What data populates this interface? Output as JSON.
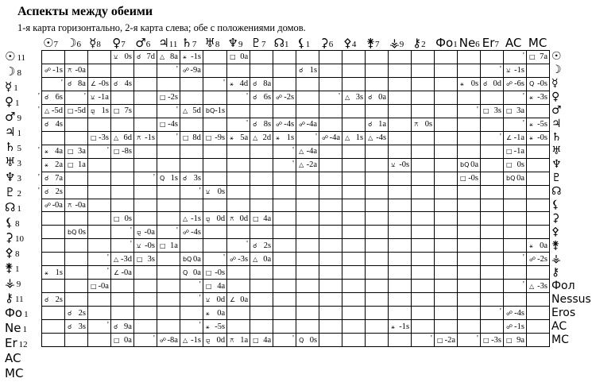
{
  "title": "Аспекты между обеими",
  "subtitle": "1-я карта горизонтально, 2-я карта слева; обе с положениями домов.",
  "columns": [
    {
      "sym": "☉",
      "house": "7"
    },
    {
      "sym": "☽",
      "house": "6"
    },
    {
      "sym": "☿",
      "house": "8"
    },
    {
      "sym": "♀",
      "house": "7"
    },
    {
      "sym": "♂",
      "house": "6"
    },
    {
      "sym": "♃",
      "house": "11"
    },
    {
      "sym": "♄",
      "house": "7"
    },
    {
      "sym": "♅",
      "house": "8"
    },
    {
      "sym": "♆",
      "house": "9"
    },
    {
      "sym": "♇",
      "house": "7"
    },
    {
      "sym": "☊",
      "house": "1"
    },
    {
      "sym": "⚸",
      "house": "1"
    },
    {
      "sym": "⚳",
      "house": "6"
    },
    {
      "sym": "⚴",
      "house": "4"
    },
    {
      "sym": "⚵",
      "house": "7"
    },
    {
      "sym": "⚶",
      "house": "9"
    },
    {
      "sym": "⚷",
      "house": "2"
    },
    {
      "sym": "Фо",
      "house": "1"
    },
    {
      "sym": "Ne",
      "house": "6"
    },
    {
      "sym": "Er",
      "house": "7"
    },
    {
      "sym": "AC",
      "house": ""
    },
    {
      "sym": "MC",
      "house": ""
    }
  ],
  "rows": [
    {
      "sym": "☉",
      "house": "11",
      "right": "☉",
      "cells": [
        "",
        "",
        "",
        "⚺ 0s",
        "☌ 7d",
        "△ 8a",
        "⚹ -1s",
        "",
        "□ 0a",
        "",
        "",
        "",
        "",
        "",
        "",
        "",
        "",
        "",
        "",
        "",
        "",
        "'□ 7a"
      ]
    },
    {
      "sym": "☽",
      "house": "8",
      "right": "☽",
      "cells": [
        "☍ -1s",
        "⚻ -0a",
        "",
        "",
        "",
        "",
        "'☍ -9a",
        "",
        "",
        "",
        "",
        "☌ 1s",
        "",
        "",
        "",
        "",
        "",
        "",
        "",
        "",
        "'⚺ -1s",
        ""
      ]
    },
    {
      "sym": "☿",
      "house": "1",
      "right": "☿",
      "cells": [
        "",
        "'☌ 8a",
        "∠ -0s",
        "☌ 4s",
        "",
        "",
        "",
        "",
        "'⚹ 4d",
        "☌ 8a",
        "",
        "",
        "",
        "",
        "",
        "",
        "",
        "",
        "⚹ 0s",
        "☌ 0d",
        "☍ -6s",
        "Q -0s"
      ]
    },
    {
      "sym": "♀",
      "house": "1",
      "right": "♀",
      "cells": [
        "'☌ 6s",
        "",
        "'⚺ -1a",
        "",
        "",
        "□ -2s",
        "",
        "",
        "",
        "'☌ 6s",
        "☍ -2s",
        "",
        "",
        "'△ 3s",
        "☌ 0a",
        "",
        "",
        "",
        "",
        "",
        "",
        "'⚹ -3s"
      ]
    },
    {
      "sym": "♂",
      "house": "9",
      "right": "♂",
      "cells": [
        "'△ -5d",
        "□ -5d",
        "⚼ 1s",
        "□ 7s",
        "",
        "",
        "'△ 5d",
        "bQ -1s",
        "",
        "",
        "",
        "",
        "",
        "",
        "",
        "",
        "",
        "",
        "",
        "'□ 3s",
        "□ 3a",
        ""
      ]
    },
    {
      "sym": "♃",
      "house": "1",
      "right": "♃",
      "cells": [
        "☌ 4s",
        "",
        "",
        "",
        "",
        "□ -4s",
        "",
        "",
        "",
        "'☌ 8s",
        "☍ -4s",
        "☍ -4a",
        "",
        "",
        "☌ 1a",
        "",
        "⚻ 0s",
        "",
        "",
        "",
        "",
        "'⚹ -5s"
      ]
    },
    {
      "sym": "♄",
      "house": "5",
      "right": "♄",
      "cells": [
        "",
        "",
        "□ -3s",
        "△ 6d",
        "⚻ -1s",
        "",
        "'□ 8d",
        "□ -9s",
        "⚹ 5a",
        "△ 2d",
        "⚹ 1s",
        "",
        "'☍ -4a",
        "△ 1s",
        "△ -4s",
        "",
        "",
        "",
        "",
        "",
        "'∠ -1a",
        "⚹ -0s"
      ]
    },
    {
      "sym": "♅",
      "house": "3",
      "right": "♅",
      "cells": [
        "'⚹ 4a",
        "□ 3a",
        "",
        "'□ -8s",
        "",
        "",
        "",
        "",
        "",
        "",
        "",
        "'△ -4a",
        "",
        "",
        "",
        "",
        "",
        "",
        "",
        "",
        "□ -1a",
        ""
      ]
    },
    {
      "sym": "♆",
      "house": "3",
      "right": "♆",
      "cells": [
        "⚹ 2a",
        "□ 1a",
        "",
        "",
        "",
        "",
        "",
        "",
        "",
        "",
        "",
        "'△ -2a",
        "",
        "",
        "",
        "⚺ -0s",
        "",
        "",
        "bQ 0a",
        "",
        "□ 0s",
        ""
      ]
    },
    {
      "sym": "♇",
      "house": "2",
      "right": "♇",
      "cells": [
        "'☌ 7a",
        "",
        "",
        "",
        "",
        "'Q 1s",
        "☌ 3s",
        "",
        "",
        "",
        "",
        "",
        "",
        "",
        "",
        "",
        "",
        "",
        "□ -0s",
        "",
        "bQ 0a",
        ""
      ]
    },
    {
      "sym": "☊",
      "house": "1",
      "right": "☊",
      "cells": [
        "'☌ 2s",
        "",
        "",
        "",
        "",
        "",
        "",
        "'⚺ 0s",
        "",
        "",
        "",
        "",
        "",
        "",
        "",
        "",
        "",
        "",
        "",
        "",
        "",
        ""
      ]
    },
    {
      "sym": "⚸",
      "house": "8",
      "right": "⚸",
      "cells": [
        "☍ -0a",
        "⚻ -0a",
        "",
        "",
        "",
        "",
        "",
        "",
        "",
        "",
        "",
        "",
        "",
        "",
        "",
        "",
        "",
        "",
        "",
        "",
        "",
        ""
      ]
    },
    {
      "sym": "⚳",
      "house": "10",
      "right": "⚳",
      "cells": [
        "",
        "",
        "",
        "□ 0s",
        "",
        "",
        "△ -1s",
        "⚼ 0d",
        "⚻ 0d",
        "□ 4a",
        "",
        "",
        "",
        "",
        "",
        "",
        "",
        "",
        "",
        "",
        "",
        ""
      ]
    },
    {
      "sym": "⚴",
      "house": "8",
      "right": "⚴",
      "cells": [
        "",
        "bQ 0s",
        "",
        "",
        "'⚼ -0a",
        "",
        "'☍ -4s",
        "",
        "",
        "",
        "",
        "",
        "",
        "",
        "",
        "",
        "",
        "",
        "",
        "",
        "",
        ""
      ]
    },
    {
      "sym": "⚵",
      "house": "1",
      "right": "⚵",
      "cells": [
        "",
        "",
        "",
        "",
        "'⚺ -0s",
        "□ 1a",
        "",
        "",
        "",
        "'☌ 2s",
        "",
        "",
        "",
        "",
        "",
        "",
        "",
        "",
        "",
        "",
        "",
        "⚹ 0a"
      ]
    },
    {
      "sym": "⚶",
      "house": "9",
      "right": "⚶",
      "cells": [
        "",
        "",
        "",
        "'△ -3d",
        "□ 3s",
        "",
        "bQ 0a",
        "",
        "'☍ -3s",
        "△ 0a",
        "",
        "",
        "",
        "",
        "",
        "",
        "",
        "",
        "",
        "",
        "",
        "'☍ -2s"
      ]
    },
    {
      "sym": "⚷",
      "house": "11",
      "right": "⚷",
      "cells": [
        "⚹ 1s",
        "",
        "",
        "'∠ -0a",
        "",
        "",
        "Q 0a",
        "□ -0s",
        "",
        "",
        "",
        "",
        "",
        "",
        "",
        "",
        "",
        "",
        "",
        "",
        "",
        ""
      ]
    },
    {
      "sym": "Фо",
      "house": "1",
      "right": "Фол",
      "cells": [
        "",
        "",
        "□ -0a",
        "",
        "",
        "",
        "",
        "'□ 4a",
        "",
        "",
        "",
        "",
        "",
        "",
        "",
        "",
        "",
        "",
        "",
        "",
        "",
        "'△ -3s"
      ]
    },
    {
      "sym": "Ne",
      "house": "1",
      "right": "Nessus",
      "cells": [
        "☌ 2s",
        "",
        "",
        "",
        "",
        "",
        "",
        "'⚺ 0d",
        "∠ 0a",
        "",
        "",
        "",
        "",
        "",
        "",
        "",
        "",
        "",
        "",
        "",
        "",
        ""
      ]
    },
    {
      "sym": "Er",
      "house": "12",
      "right": "Eros",
      "cells": [
        "",
        "☌ 2s",
        "",
        "",
        "",
        "",
        "",
        "⚹ 0a",
        "",
        "",
        "",
        "",
        "",
        "",
        "",
        "",
        "",
        "",
        "",
        "",
        "'☍ -4s",
        ""
      ]
    },
    {
      "sym": "AC",
      "house": "",
      "right": "AC",
      "cells": [
        "",
        "☌ 3s",
        "",
        "'☌ 9a",
        "",
        "",
        "",
        "'⚹ -5s",
        "",
        "",
        "",
        "",
        "",
        "",
        "",
        "⚹ -1s",
        "",
        "",
        "",
        "",
        "☍ -1s",
        ""
      ]
    },
    {
      "sym": "MC",
      "house": "",
      "right": "MC",
      "cells": [
        "",
        "",
        "",
        "□ 0a",
        "",
        "'☍ -8a",
        "△ -1s",
        "⚼ 0d",
        "⚻ 1a",
        "□ 4a",
        "",
        "'Q 0s",
        "",
        "",
        "",
        "",
        "",
        "'□ -2a",
        "",
        "'□ -3s",
        "□ 9a",
        ""
      ]
    }
  ]
}
